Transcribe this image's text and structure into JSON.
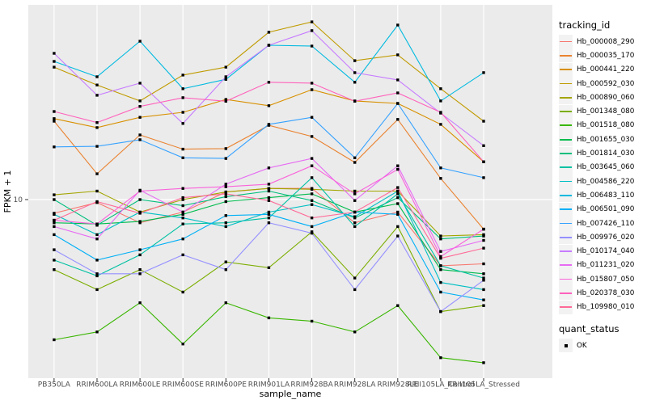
{
  "figure": {
    "y_axis": {
      "title": "FPKM + 1",
      "tick_labels": [
        "10"
      ]
    },
    "x_axis": {
      "title": "sample_name"
    },
    "legend": {
      "tracking_title": "tracking_id",
      "quant_title": "quant_status",
      "quant_items": [
        {
          "label": "OK"
        }
      ]
    },
    "colors": {
      "panel_bg": "#EBEBEB",
      "grid": "#FFFFFF",
      "legend_key_bg": "#F2F2F2",
      "axis_text": "#4D4D4D",
      "tick_mark": "#333333",
      "point": "#000000"
    }
  },
  "chart_data": {
    "type": "line",
    "title": "",
    "xlabel": "sample_name",
    "ylabel": "FPKM + 1",
    "y_scale": "log10",
    "ylim": [
      1.8,
      65
    ],
    "y_ticks": [
      10
    ],
    "grid": true,
    "legend_position": "right",
    "point_shape": "filled-square-black",
    "quant_status": "OK",
    "categories": [
      "PB350LA",
      "RRIM600LA",
      "RRIM600LE",
      "RRIM600SE",
      "RRIM600PE",
      "RRIM901LA",
      "RRIM928BA",
      "RRIM928LA",
      "RRIM928LE",
      "RRII105LA_Control",
      "RRII105LA_Stressed"
    ],
    "series": [
      {
        "name": "Hb_000008_290",
        "color": "#F8766D",
        "values": [
          8.7,
          9.7,
          7.9,
          8.8,
          10.8,
          11.2,
          11.2,
          7.9,
          8.8,
          5.1,
          5.2
        ]
      },
      {
        "name": "Hb_000035_170",
        "color": "#EA8331",
        "values": [
          22.2,
          13.0,
          19.3,
          16.7,
          16.8,
          21.3,
          19.0,
          14.6,
          22.6,
          12.4,
          7.4
        ]
      },
      {
        "name": "Hb_000441_220",
        "color": "#D89000",
        "values": [
          22.8,
          20.8,
          23.1,
          24.3,
          27.7,
          26.0,
          30.6,
          27.3,
          26.6,
          21.5,
          14.7
        ]
      },
      {
        "name": "Hb_000592_030",
        "color": "#C09B00",
        "values": [
          38.5,
          32.1,
          27.3,
          35.5,
          38.5,
          54.9,
          61.0,
          41.1,
          43.6,
          30.9,
          22.2
        ]
      },
      {
        "name": "Hb_000890_060",
        "color": "#A3A500",
        "values": [
          10.5,
          10.9,
          8.8,
          10.0,
          10.8,
          11.2,
          11.1,
          10.9,
          10.9,
          6.9,
          7.0
        ]
      },
      {
        "name": "Hb_001348_080",
        "color": "#7CAE00",
        "values": [
          4.9,
          4.0,
          4.9,
          3.9,
          5.3,
          5.0,
          7.2,
          4.5,
          7.6,
          3.2,
          3.4
        ]
      },
      {
        "name": "Hb_001518_080",
        "color": "#39B600",
        "values": [
          2.4,
          2.6,
          3.5,
          2.3,
          3.5,
          3.0,
          2.9,
          2.6,
          3.4,
          2.0,
          1.9
        ]
      },
      {
        "name": "Hb_001655_030",
        "color": "#00BB4E",
        "values": [
          7.9,
          7.8,
          8.0,
          8.6,
          9.8,
          10.2,
          10.6,
          8.8,
          9.6,
          4.9,
          4.7
        ]
      },
      {
        "name": "Hb_001814_030",
        "color": "#00BF7D",
        "values": [
          10.0,
          7.7,
          10.0,
          9.4,
          10.3,
          10.9,
          9.9,
          8.3,
          10.2,
          6.7,
          6.9
        ]
      },
      {
        "name": "Hb_003645_060",
        "color": "#00C1A3",
        "values": [
          5.4,
          4.6,
          5.7,
          7.8,
          7.9,
          8.3,
          12.5,
          7.6,
          10.6,
          5.1,
          4.5
        ]
      },
      {
        "name": "Hb_004586_220",
        "color": "#00BFC4",
        "values": [
          8.6,
          7.0,
          8.8,
          8.3,
          7.6,
          8.8,
          9.5,
          8.4,
          10.9,
          4.3,
          4.0
        ]
      },
      {
        "name": "Hb_006483_110",
        "color": "#00BAE0",
        "values": [
          40.8,
          34.9,
          50.1,
          30.9,
          34.0,
          48.1,
          47.7,
          33.0,
          59.1,
          27.3,
          36.4
        ]
      },
      {
        "name": "Hb_006501_090",
        "color": "#00B0F6",
        "values": [
          7.0,
          5.4,
          6.0,
          6.7,
          8.5,
          8.6,
          7.6,
          8.8,
          8.6,
          3.9,
          3.6
        ]
      },
      {
        "name": "Hb_007426_110",
        "color": "#35A2FF",
        "values": [
          17.1,
          17.2,
          18.4,
          15.3,
          15.2,
          21.5,
          23.1,
          15.3,
          26.6,
          13.8,
          12.5
        ]
      },
      {
        "name": "Hb_009976_020",
        "color": "#9590FF",
        "values": [
          6.0,
          4.7,
          4.7,
          5.7,
          4.9,
          7.9,
          7.1,
          4.0,
          6.9,
          3.2,
          4.4
        ]
      },
      {
        "name": "Hb_010174_040",
        "color": "#C77CFF",
        "values": [
          44.3,
          28.9,
          32.7,
          21.7,
          34.9,
          48.1,
          55.8,
          36.4,
          33.8,
          24.1,
          17.3
        ]
      },
      {
        "name": "Hb_011231_020",
        "color": "#E76BF3",
        "values": [
          7.6,
          6.7,
          11.0,
          8.8,
          11.7,
          13.8,
          15.2,
          9.9,
          14.1,
          5.9,
          6.6
        ]
      },
      {
        "name": "Hb_015807_050",
        "color": "#FA62DB",
        "values": [
          8.1,
          7.8,
          10.9,
          11.2,
          11.4,
          11.7,
          14.1,
          10.6,
          13.6,
          5.6,
          7.4
        ]
      },
      {
        "name": "Hb_020378_030",
        "color": "#FF62BC",
        "values": [
          24.5,
          21.9,
          25.8,
          28.2,
          27.2,
          33.0,
          32.7,
          27.2,
          29.6,
          24.3,
          14.7
        ]
      },
      {
        "name": "Hb_109980_010",
        "color": "#FF6A98",
        "values": [
          8.1,
          9.8,
          8.7,
          10.2,
          10.6,
          9.9,
          8.3,
          8.8,
          11.3,
          5.5,
          6.1
        ]
      }
    ]
  }
}
